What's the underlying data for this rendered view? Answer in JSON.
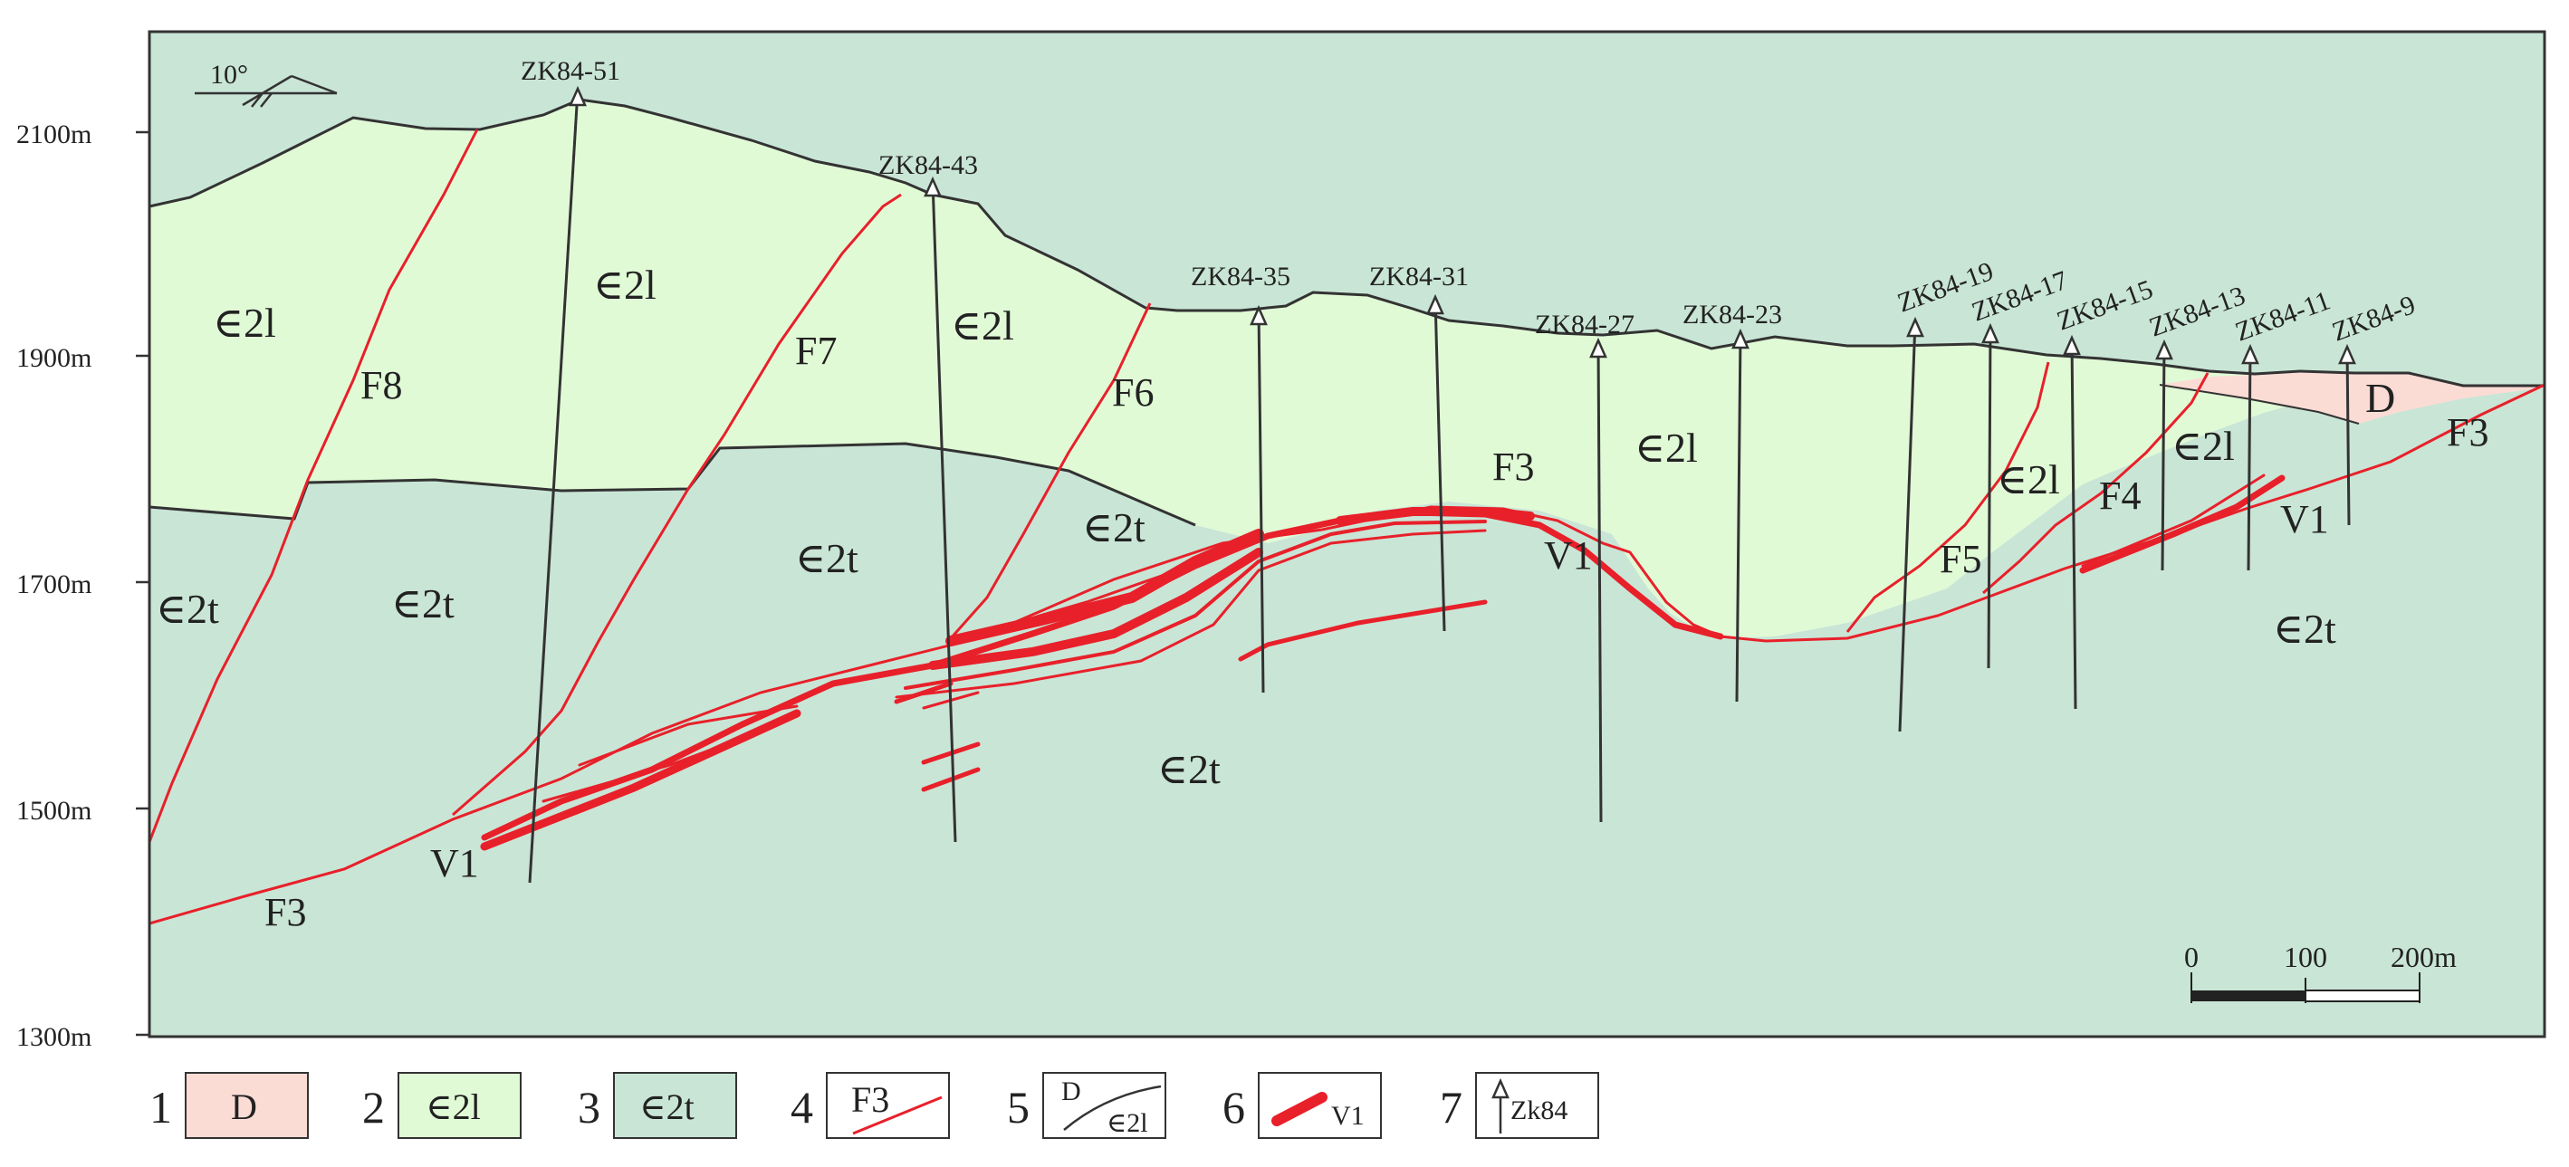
{
  "elevation_labels": [
    "2100m",
    "1900m",
    "1700m",
    "1500m",
    "1300m"
  ],
  "dip_angle": "10°",
  "drillholes": [
    {
      "id": "ZK84-51"
    },
    {
      "id": "ZK84-43"
    },
    {
      "id": "ZK84-35"
    },
    {
      "id": "ZK84-31"
    },
    {
      "id": "ZK84-27"
    },
    {
      "id": "ZK84-23"
    },
    {
      "id": "ZK84-19"
    },
    {
      "id": "ZK84-17"
    },
    {
      "id": "ZK84-15"
    },
    {
      "id": "ZK84-13"
    },
    {
      "id": "ZK84-11"
    },
    {
      "id": "ZK84-9"
    }
  ],
  "units": {
    "d": {
      "label": "D",
      "color": "#fbdcd5"
    },
    "c2l": {
      "label": "∈2l",
      "color": "#e1fad6"
    },
    "c2t": {
      "label": "∈2t",
      "color": "#c9e5d6"
    }
  },
  "faults": [
    "F8",
    "F7",
    "F6",
    "F3",
    "F5",
    "F4"
  ],
  "orebody": "V1",
  "scale_bar": {
    "ticks": [
      "0",
      "100",
      "200m"
    ]
  },
  "legend": [
    {
      "num": "1",
      "text": "D"
    },
    {
      "num": "2",
      "text": "∈2l"
    },
    {
      "num": "3",
      "text": "∈2t"
    },
    {
      "num": "4",
      "text": "F3"
    },
    {
      "num": "5",
      "text_top": "D",
      "text_bottom": "∈2l"
    },
    {
      "num": "6",
      "text": "V1"
    },
    {
      "num": "7",
      "text": "Zk84"
    }
  ],
  "colors": {
    "fault": "#e8202a",
    "contact": "#333333",
    "frame": "#333333"
  }
}
